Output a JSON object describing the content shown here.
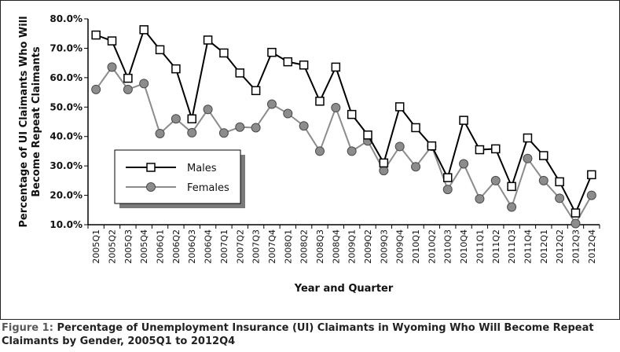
{
  "chart_data": {
    "type": "line",
    "ylabel_line1": "Percentage of UI Claimants Who Will",
    "ylabel_line2": "Become Repeat Claimants",
    "xlabel": "Year and Quarter",
    "ylim": [
      10,
      80
    ],
    "yticks": [
      "10.0%",
      "20.0%",
      "30.0%",
      "40.0%",
      "50.0%",
      "60.0%",
      "70.0%",
      "80.0%"
    ],
    "ytick_values": [
      10,
      20,
      30,
      40,
      50,
      60,
      70,
      80
    ],
    "grid": false,
    "legend_position": "center-left",
    "categories": [
      "2005Q1",
      "2005Q2",
      "2005Q3",
      "2005Q4",
      "2006Q1",
      "2006Q2",
      "2006Q3",
      "2006Q4",
      "2007Q1",
      "2007Q2",
      "2007Q3",
      "2007Q4",
      "2008Q1",
      "2008Q2",
      "2008Q3",
      "2008Q4",
      "2009Q1",
      "2009Q2",
      "2009Q3",
      "2009Q4",
      "2010Q1",
      "2010Q2",
      "2010Q3",
      "2010Q4",
      "2011Q1",
      "2011Q2",
      "2011Q3",
      "2011Q4",
      "2012Q1",
      "2012Q2",
      "2012Q3",
      "2012Q4"
    ],
    "series": [
      {
        "name": "Males",
        "color": "#000000",
        "marker": "square",
        "values": [
          74.5,
          72.5,
          59.8,
          76.3,
          69.5,
          63.0,
          46.0,
          72.8,
          68.4,
          61.6,
          55.6,
          68.6,
          65.4,
          64.3,
          52.0,
          63.6,
          47.5,
          40.5,
          31.0,
          50.1,
          43.0,
          36.8,
          26.0,
          45.5,
          35.5,
          35.8,
          23.0,
          39.5,
          33.5,
          24.6,
          14.0,
          27.0
        ]
      },
      {
        "name": "Females",
        "color": "#8c8c8c",
        "marker": "circle",
        "values": [
          56.0,
          63.6,
          56.0,
          58.0,
          41.0,
          46.0,
          41.3,
          49.2,
          41.2,
          43.2,
          43.0,
          51.0,
          47.8,
          43.6,
          35.0,
          49.8,
          35.0,
          38.5,
          28.4,
          36.6,
          29.7,
          36.7,
          22.0,
          30.7,
          18.8,
          25.0,
          16.0,
          32.5,
          25.0,
          19.0,
          10.4,
          20.0
        ]
      }
    ]
  },
  "caption": {
    "lead": "Figure 1:",
    "text": "Percentage of Unemployment Insurance (UI) Claimants in Wyoming Who Will Become Repeat Claimants by Gender, 2005Q1 to 2012Q4"
  }
}
